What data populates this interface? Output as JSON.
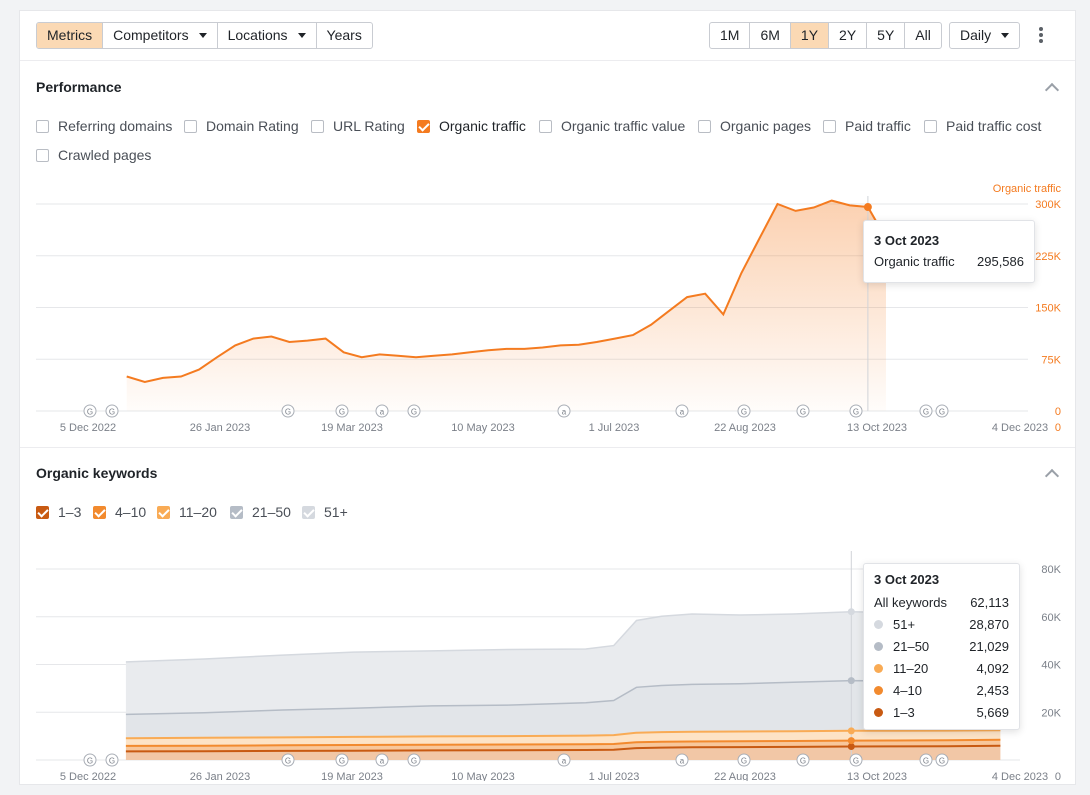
{
  "toolbar": {
    "metrics": "Metrics",
    "competitors": "Competitors",
    "locations": "Locations",
    "years": "Years",
    "ranges": [
      "1M",
      "6M",
      "1Y",
      "2Y",
      "5Y",
      "All"
    ],
    "active_range": "1Y",
    "interval": "Daily"
  },
  "performance": {
    "title": "Performance",
    "metrics": [
      {
        "label": "Referring domains",
        "checked": false
      },
      {
        "label": "Domain Rating",
        "checked": false
      },
      {
        "label": "URL Rating",
        "checked": false
      },
      {
        "label": "Organic traffic",
        "checked": true
      },
      {
        "label": "Organic traffic value",
        "checked": false
      },
      {
        "label": "Organic pages",
        "checked": false
      },
      {
        "label": "Paid traffic",
        "checked": false
      },
      {
        "label": "Paid traffic cost",
        "checked": false
      },
      {
        "label": "Crawled pages",
        "checked": false
      }
    ],
    "tooltip": {
      "date": "3 Oct 2023",
      "label": "Organic traffic",
      "value": "295,586"
    }
  },
  "keywords": {
    "title": "Organic keywords",
    "filters": [
      {
        "label": "1–3",
        "color": "#c85a12"
      },
      {
        "label": "4–10",
        "color": "#f28a2e"
      },
      {
        "label": "11–20",
        "color": "#f9ab55"
      },
      {
        "label": "21–50",
        "color": "#b5bcc6"
      },
      {
        "label": "51+",
        "color": "#d5d9df"
      }
    ],
    "tooltip": {
      "date": "3 Oct 2023",
      "all_label": "All keywords",
      "all_value": "62,113",
      "rows": [
        {
          "label": "51+",
          "value": "28,870",
          "color": "#d5d9df"
        },
        {
          "label": "21–50",
          "value": "21,029",
          "color": "#b5bcc6"
        },
        {
          "label": "11–20",
          "value": "4,092",
          "color": "#f9ab55"
        },
        {
          "label": "4–10",
          "value": "2,453",
          "color": "#f28a2e"
        },
        {
          "label": "1–3",
          "value": "5,669",
          "color": "#c85a12"
        }
      ]
    }
  },
  "colors": {
    "accent": "#f47b20",
    "active_bg": "#fbd9b4",
    "grid": "#e6e7ea"
  },
  "chart_data": [
    {
      "type": "area",
      "series": [
        {
          "name": "Organic traffic",
          "x": [
            "2022-12-20",
            "2022-12-27",
            "2023-01-03",
            "2023-01-10",
            "2023-01-17",
            "2023-01-24",
            "2023-01-31",
            "2023-02-07",
            "2023-02-14",
            "2023-02-21",
            "2023-02-28",
            "2023-03-07",
            "2023-03-14",
            "2023-03-21",
            "2023-03-28",
            "2023-04-04",
            "2023-04-11",
            "2023-04-18",
            "2023-04-25",
            "2023-05-02",
            "2023-05-09",
            "2023-05-16",
            "2023-05-23",
            "2023-05-30",
            "2023-06-06",
            "2023-06-13",
            "2023-06-20",
            "2023-06-27",
            "2023-07-04",
            "2023-07-11",
            "2023-07-18",
            "2023-07-25",
            "2023-08-01",
            "2023-08-08",
            "2023-08-15",
            "2023-08-22",
            "2023-08-29",
            "2023-09-05",
            "2023-09-12",
            "2023-09-19",
            "2023-09-26",
            "2023-10-03",
            "2023-10-10"
          ],
          "values": [
            50000,
            42000,
            48000,
            50000,
            60000,
            78000,
            95000,
            105000,
            108000,
            100000,
            102000,
            105000,
            85000,
            78000,
            82000,
            80000,
            78000,
            80000,
            82000,
            85000,
            88000,
            90000,
            90000,
            92000,
            95000,
            96000,
            100000,
            105000,
            110000,
            125000,
            145000,
            165000,
            170000,
            140000,
            200000,
            250000,
            300000,
            290000,
            295000,
            305000,
            298000,
            295586,
            250000
          ]
        }
      ],
      "title": "",
      "ylabel": "Organic traffic",
      "yticks": [
        "0",
        "75K",
        "150K",
        "225K",
        "300K"
      ],
      "ylim": [
        0,
        300000
      ],
      "xticks": [
        "5 Dec 2022",
        "26 Jan 2023",
        "19 Mar 2023",
        "10 May 2023",
        "1 Jul 2023",
        "22 Aug 2023",
        "13 Oct 2023",
        "4 Dec 2023"
      ],
      "grid": true
    },
    {
      "type": "area",
      "x": [
        "2022-12-20",
        "2023-01-20",
        "2023-02-20",
        "2023-03-20",
        "2023-04-20",
        "2023-05-20",
        "2023-06-20",
        "2023-07-01",
        "2023-07-10",
        "2023-07-20",
        "2023-08-01",
        "2023-08-20",
        "2023-09-10",
        "2023-10-03",
        "2023-10-20",
        "2023-11-10",
        "2023-12-01"
      ],
      "series": [
        {
          "name": "51+",
          "values": [
            22000,
            22500,
            23000,
            23500,
            23000,
            23300,
            22500,
            23000,
            28000,
            29000,
            29500,
            28800,
            28600,
            28870,
            28700,
            28600,
            28500
          ]
        },
        {
          "name": "21–50",
          "values": [
            10000,
            10500,
            11500,
            12000,
            12800,
            13000,
            13800,
            14500,
            19000,
            19500,
            19800,
            20000,
            20500,
            21029,
            20800,
            20600,
            20500
          ]
        },
        {
          "name": "11–20",
          "values": [
            3200,
            3300,
            3300,
            3400,
            3500,
            3500,
            3600,
            3700,
            4000,
            4050,
            4100,
            4080,
            4090,
            4092,
            4080,
            4070,
            4060
          ]
        },
        {
          "name": "4–10",
          "values": [
            2300,
            2300,
            2350,
            2380,
            2380,
            2400,
            2400,
            2420,
            2450,
            2440,
            2450,
            2452,
            2452,
            2453,
            2450,
            2440,
            2440
          ]
        },
        {
          "name": "1–3",
          "values": [
            3600,
            3700,
            3800,
            3900,
            4000,
            4100,
            4200,
            4300,
            5000,
            5200,
            5300,
            5400,
            5500,
            5669,
            5700,
            5800,
            6000
          ]
        }
      ],
      "stacked": true,
      "yticks": [
        "0",
        "20K",
        "40K",
        "60K",
        "80K"
      ],
      "ylim": [
        0,
        80000
      ],
      "xticks": [
        "5 Dec 2022",
        "26 Jan 2023",
        "19 Mar 2023",
        "10 May 2023",
        "1 Jul 2023",
        "22 Aug 2023",
        "13 Oct 2023",
        "4 Dec 2023"
      ],
      "grid": true
    }
  ]
}
